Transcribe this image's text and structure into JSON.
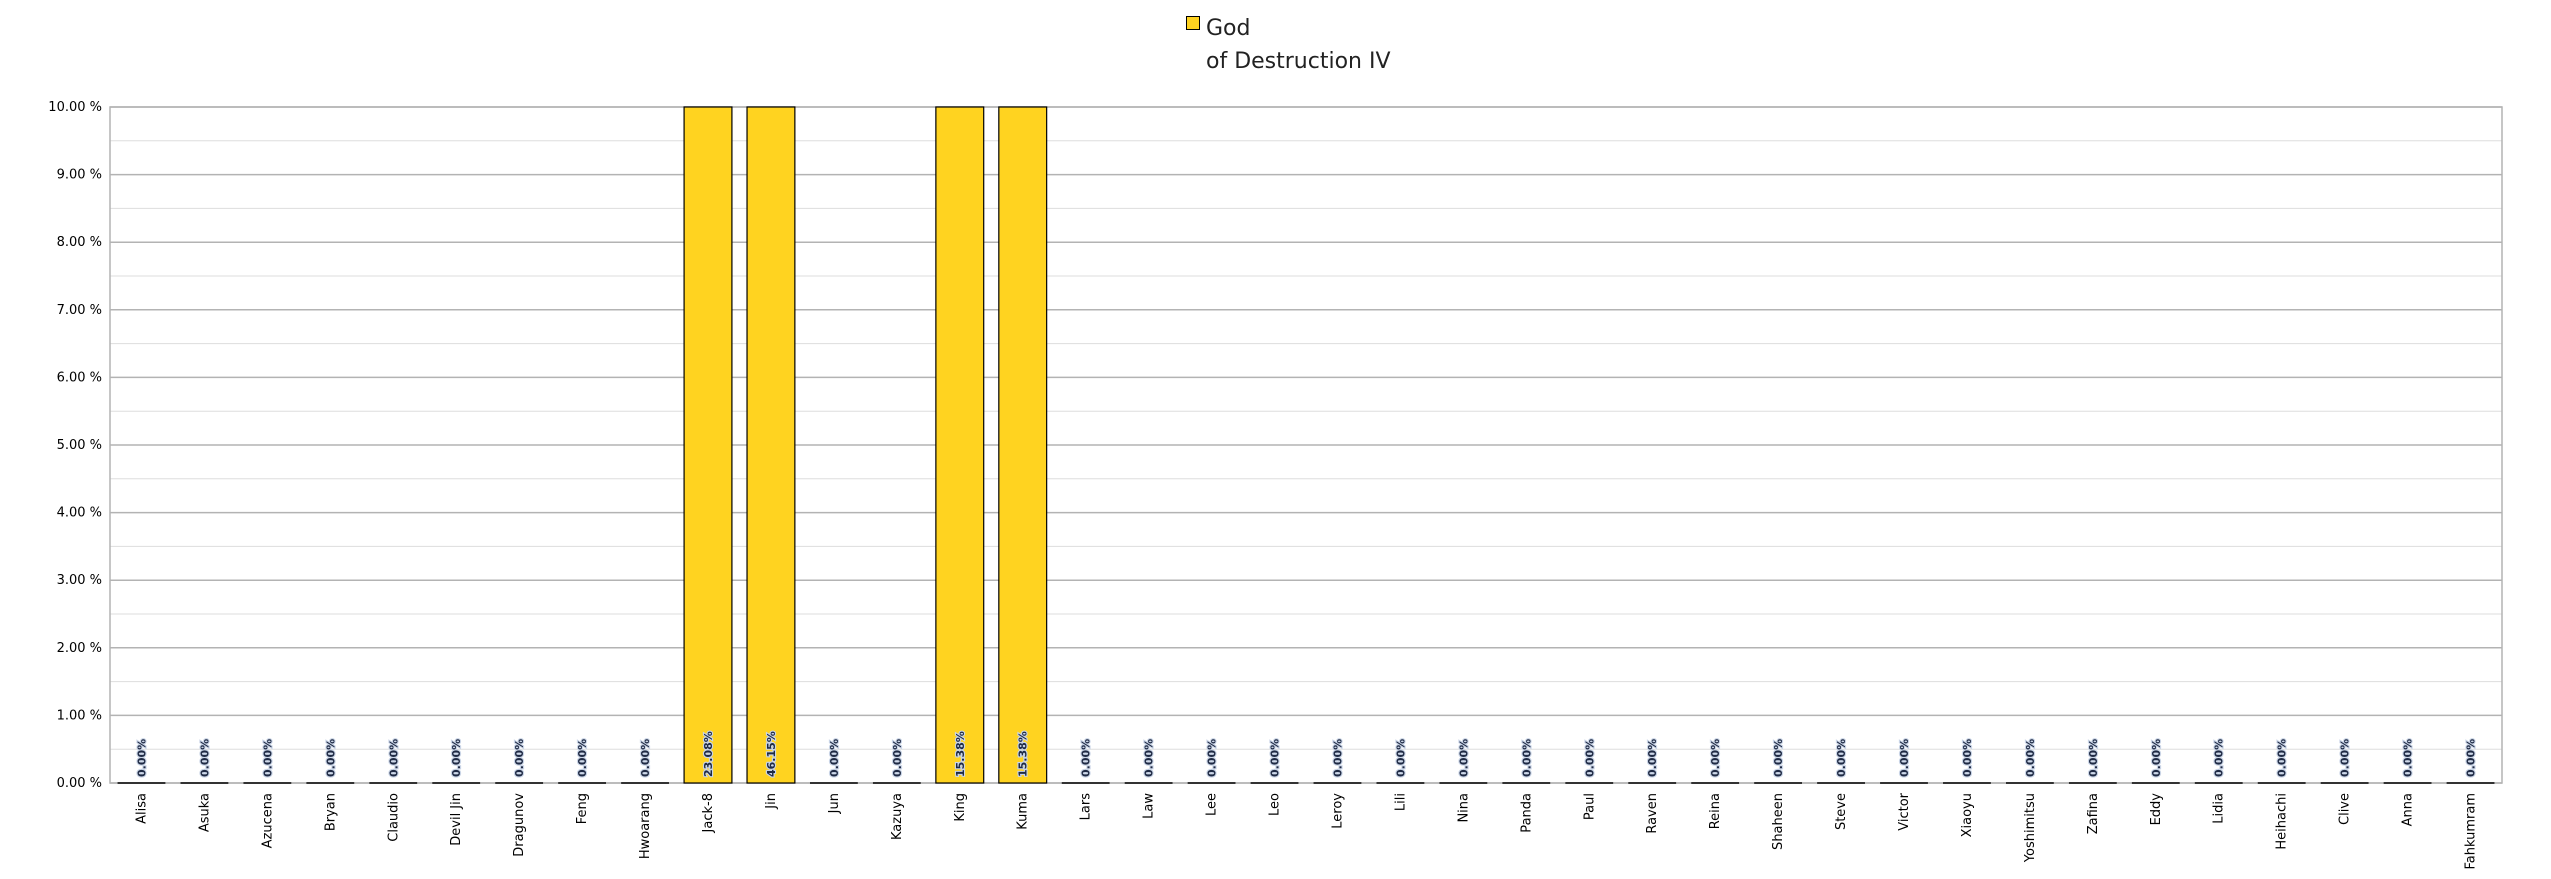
{
  "chart_data": {
    "type": "bar",
    "y_tick_labels": [
      "0.00 %",
      "1.00 %",
      "2.00 %",
      "3.00 %",
      "4.00 %",
      "5.00 %",
      "6.00 %",
      "7.00 %",
      "8.00 %",
      "9.00 %",
      "10.00 %"
    ],
    "ylim": [
      0,
      10
    ],
    "y_unit": "%",
    "grid": true,
    "minor_grid": true,
    "legend_position": "top",
    "categories": [
      "Alisa",
      "Asuka",
      "Azucena",
      "Bryan",
      "Claudio",
      "Devil Jin",
      "Dragunov",
      "Feng",
      "Hwoarang",
      "Jack-8",
      "Jin",
      "Jun",
      "Kazuya",
      "King",
      "Kuma",
      "Lars",
      "Law",
      "Lee",
      "Leo",
      "Leroy",
      "Lili",
      "Nina",
      "Panda",
      "Paul",
      "Raven",
      "Reina",
      "Shaheen",
      "Steve",
      "Victor",
      "Xiaoyu",
      "Yoshimitsu",
      "Zafina",
      "Eddy",
      "Lidia",
      "Heihachi",
      "Clive",
      "Anna",
      "Fahkumram"
    ],
    "series": [
      {
        "name": "God of Destruction IV",
        "color": "#ffd320",
        "values": [
          0,
          0,
          0,
          0,
          0,
          0,
          0,
          0,
          0,
          23.08,
          46.15,
          0,
          0,
          15.38,
          15.38,
          0,
          0,
          0,
          0,
          0,
          0,
          0,
          0,
          0,
          0,
          0,
          0,
          0,
          0,
          0,
          0,
          0,
          0,
          0,
          0,
          0,
          0,
          0
        ],
        "data_labels": [
          "0.00%",
          "0.00%",
          "0.00%",
          "0.00%",
          "0.00%",
          "0.00%",
          "0.00%",
          "0.00%",
          "0.00%",
          "23.08%",
          "46.15%",
          "0.00%",
          "0.00%",
          "15.38%",
          "15.38%",
          "0.00%",
          "0.00%",
          "0.00%",
          "0.00%",
          "0.00%",
          "0.00%",
          "0.00%",
          "0.00%",
          "0.00%",
          "0.00%",
          "0.00%",
          "0.00%",
          "0.00%",
          "0.00%",
          "0.00%",
          "0.00%",
          "0.00%",
          "0.00%",
          "0.00%",
          "0.00%",
          "0.00%",
          "0.00%",
          "0.00%"
        ]
      }
    ]
  },
  "legend": {
    "line1": "God",
    "line2": "of Destruction IV",
    "color": "#ffd320"
  }
}
